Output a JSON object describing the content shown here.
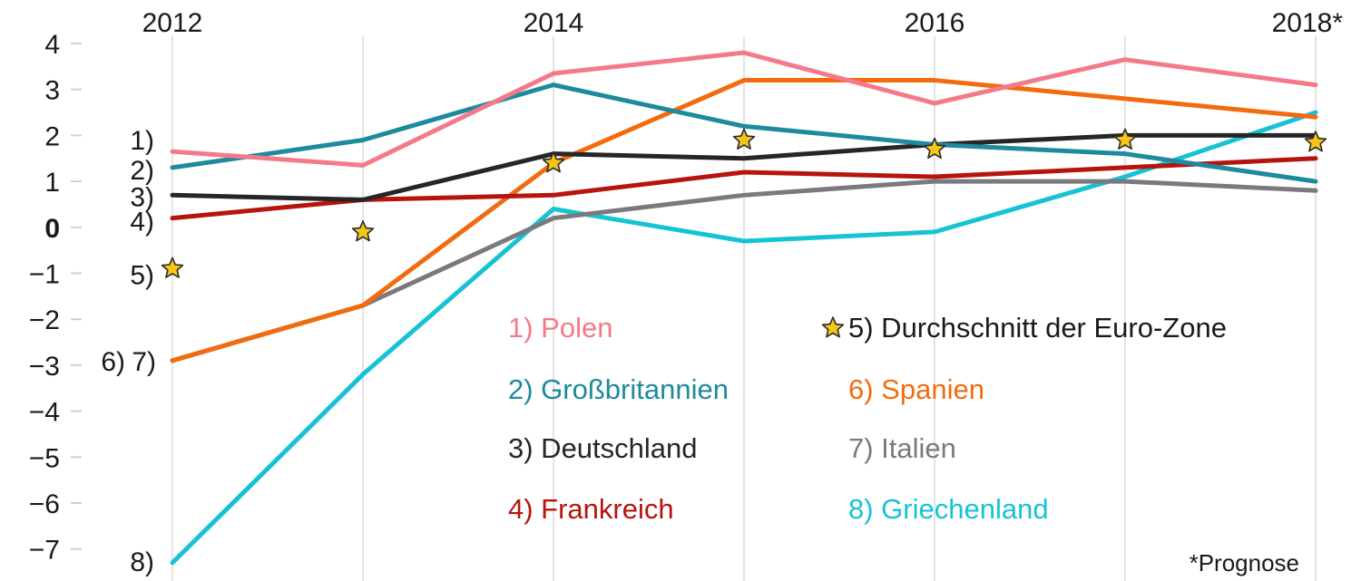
{
  "chart_data": {
    "type": "line",
    "title": "",
    "xlabel": "",
    "ylabel": "",
    "x": [
      "2012",
      "2013",
      "2014",
      "2015",
      "2016",
      "2017",
      "2018*"
    ],
    "x_tick_labels": [
      "2012",
      "2014",
      "2016",
      "2018*"
    ],
    "y_ticks": [
      "4",
      "3",
      "2",
      "1",
      "0",
      "-1",
      "-2",
      "-3",
      "-4",
      "-5",
      "-6",
      "-7"
    ],
    "y_tick_values": [
      4,
      3,
      2,
      1,
      0,
      -1,
      -2,
      -3,
      -4,
      -5,
      -6,
      -7
    ],
    "ylim": [
      -7.4,
      4.1
    ],
    "grid": "vertical",
    "series": [
      {
        "id": 1,
        "name": "Polen",
        "marker": "1)",
        "legend": "1) Polen",
        "color": "#f47a8a",
        "values": [
          1.65,
          1.35,
          3.35,
          3.8,
          2.7,
          3.65,
          3.1
        ]
      },
      {
        "id": 2,
        "name": "Großbritannien",
        "marker": "2)",
        "legend": "2) Großbritannien",
        "color": "#1e8a9e",
        "values": [
          1.3,
          1.9,
          3.1,
          2.2,
          1.8,
          1.6,
          1.0
        ]
      },
      {
        "id": 3,
        "name": "Deutschland",
        "marker": "3)",
        "legend": "3) Deutschland",
        "color": "#262626",
        "values": [
          0.7,
          0.6,
          1.6,
          1.5,
          1.8,
          2.0,
          2.0
        ]
      },
      {
        "id": 4,
        "name": "Frankreich",
        "marker": "4)",
        "legend": "4) Frankreich",
        "color": "#b5140f",
        "values": [
          0.2,
          0.6,
          0.7,
          1.2,
          1.1,
          1.3,
          1.5
        ]
      },
      {
        "id": 6,
        "name": "Spanien",
        "marker": "6)",
        "legend": "6) Spanien",
        "color": "#f26b0f",
        "values": [
          -2.9,
          -1.7,
          1.4,
          3.2,
          3.2,
          2.8,
          2.4
        ]
      },
      {
        "id": 7,
        "name": "Italien",
        "marker": "7)",
        "legend": "7) Italien",
        "color": "#7a7a7e",
        "values": [
          -2.9,
          -1.7,
          0.2,
          0.7,
          1.0,
          1.0,
          0.8
        ]
      },
      {
        "id": 8,
        "name": "Griechenland",
        "marker": "8)",
        "legend": "8) Griechenland",
        "color": "#16c3d4",
        "values": [
          -7.3,
          -3.2,
          0.4,
          -0.3,
          -0.1,
          1.1,
          2.5
        ]
      }
    ],
    "eurozone": {
      "id": 5,
      "name": "Durchschnitt der Euro-Zone",
      "marker": "5)",
      "legend": "5) Durchschnitt der Euro-Zone",
      "style": "star",
      "color": "#f5c518",
      "stroke": "#2a2a2a",
      "values": [
        -0.9,
        -0.1,
        1.4,
        1.9,
        1.7,
        1.9,
        1.85
      ]
    },
    "footnote": "*Prognose"
  }
}
